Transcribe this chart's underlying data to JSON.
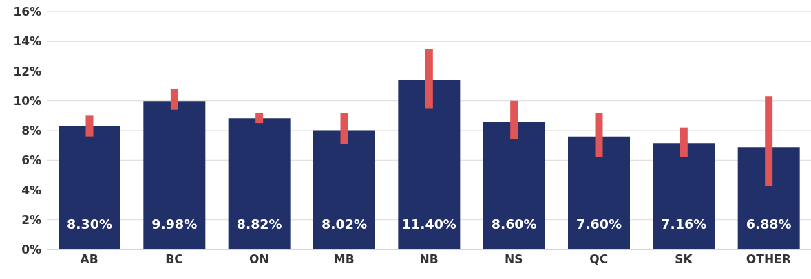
{
  "chart_data": {
    "type": "bar",
    "categories": [
      "AB",
      "BC",
      "ON",
      "MB",
      "NB",
      "NS",
      "QC",
      "SK",
      "OTHER"
    ],
    "values": [
      8.3,
      9.98,
      8.82,
      8.02,
      11.4,
      8.6,
      7.6,
      7.16,
      6.88
    ],
    "value_labels": [
      "8.30%",
      "9.98%",
      "8.82%",
      "8.02%",
      "11.40%",
      "8.60%",
      "7.60%",
      "7.16%",
      "6.88%"
    ],
    "color": "#22306a",
    "errors": [
      [
        7.6,
        9.0
      ],
      [
        9.4,
        10.8
      ],
      [
        8.5,
        9.2
      ],
      [
        7.1,
        9.2
      ],
      [
        9.5,
        13.5
      ],
      [
        7.4,
        10.0
      ],
      [
        6.2,
        9.2
      ],
      [
        6.2,
        8.2
      ],
      [
        4.3,
        10.3
      ]
    ],
    "ylim": [
      0,
      16
    ],
    "yticks": [
      {
        "value": 0,
        "label": "0%"
      },
      {
        "value": 2,
        "label": "2%"
      },
      {
        "value": 4,
        "label": "4%"
      },
      {
        "value": 6,
        "label": "6%"
      },
      {
        "value": 8,
        "label": "8%"
      },
      {
        "value": 10,
        "label": "10%"
      },
      {
        "value": 12,
        "label": "12%"
      },
      {
        "value": 14,
        "label": "14%"
      },
      {
        "value": 16,
        "label": "16%"
      }
    ],
    "grid": "y"
  }
}
